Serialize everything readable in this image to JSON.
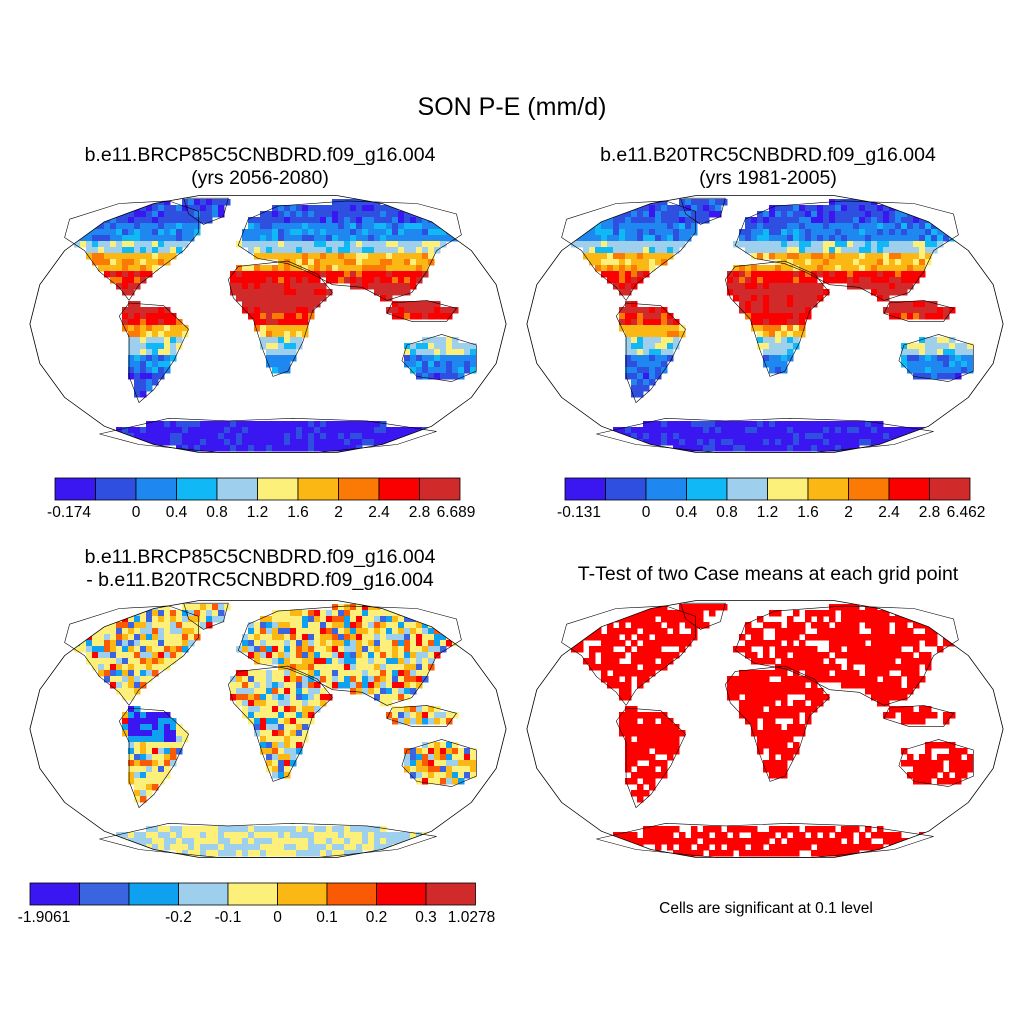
{
  "title": "SON P-E (mm/d)",
  "panels": [
    {
      "id": "case1",
      "title_line1": "b.e11.BRCP85C5CNBDRD.f09_g16.004",
      "title_line2": "(yrs 2056-2080)",
      "colorbar": {
        "colors": [
          "#3a17f0",
          "#2e4fe0",
          "#1e88f0",
          "#10b8f5",
          "#9ed0ee",
          "#fdf07a",
          "#fbb714",
          "#fb7a05",
          "#fb0000",
          "#d02a2a"
        ],
        "labels": [
          "-0.174",
          "0",
          "0.4",
          "0.8",
          "1.2",
          "1.6",
          "2",
          "2.4",
          "2.8",
          "6.689"
        ]
      }
    },
    {
      "id": "case2",
      "title_line1": "b.e11.B20TRC5CNBDRD.f09_g16.004",
      "title_line2": "(yrs 1981-2005)",
      "colorbar": {
        "colors": [
          "#3a17f0",
          "#2e4fe0",
          "#1e88f0",
          "#10b8f5",
          "#9ed0ee",
          "#fdf07a",
          "#fbb714",
          "#fb7a05",
          "#fb0000",
          "#d02a2a"
        ],
        "labels": [
          "-0.131",
          "0",
          "0.4",
          "0.8",
          "1.2",
          "1.6",
          "2",
          "2.4",
          "2.8",
          "6.462"
        ]
      }
    },
    {
      "id": "difference",
      "title_line1": "b.e11.BRCP85C5CNBDRD.f09_g16.004",
      "title_line2": "- b.e11.B20TRC5CNBDRD.f09_g16.004",
      "colorbar": {
        "colors": [
          "#3a17f0",
          "#3b64e0",
          "#10a0f0",
          "#9ed0ee",
          "#fdf07a",
          "#fbb714",
          "#fb5a05",
          "#fb0000",
          "#d02a2a"
        ],
        "labels": [
          "-1.9061",
          "",
          "-0.2",
          "-0.1",
          "0",
          "0.1",
          "0.2",
          "0.3",
          "1.0278"
        ]
      }
    },
    {
      "id": "ttest",
      "title_line1": "T-Test of two Case means at each grid point",
      "note": "Cells are significant at 0.1 level",
      "fill_color": "#ff0000"
    }
  ]
}
